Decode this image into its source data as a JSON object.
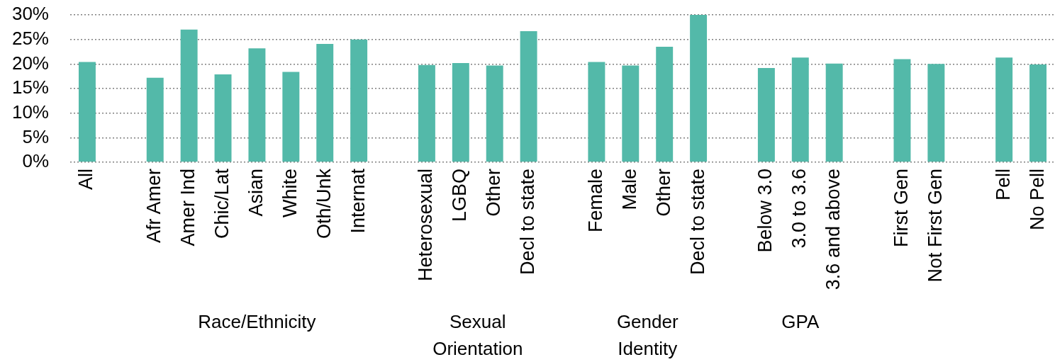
{
  "chart_data": {
    "type": "bar",
    "categories": [
      "All",
      null,
      "Afr Amer",
      "Amer Ind",
      "Chic/Lat",
      "Asian",
      "White",
      "Oth/Unk",
      "Internat",
      null,
      "Heterosexual",
      "LGBQ",
      "Other",
      "Decl to state",
      null,
      "Female",
      "Male",
      "Other",
      "Decl to state",
      null,
      "Below 3.0",
      "3.0 to 3.6",
      "3.6 and above",
      null,
      "First Gen",
      "Not First Gen",
      null,
      "Pell",
      "No Pell"
    ],
    "values": [
      20.4,
      null,
      17.2,
      27.0,
      17.9,
      23.2,
      18.4,
      24.1,
      25.0,
      null,
      19.8,
      20.2,
      19.7,
      26.7,
      null,
      20.4,
      19.7,
      23.5,
      30.0,
      null,
      19.2,
      21.3,
      20.1,
      null,
      21.0,
      20.0,
      null,
      21.3,
      19.9
    ],
    "color": "#53b9a9",
    "ylim": [
      0,
      30
    ],
    "yticks": [
      {
        "value": 0,
        "label": "0%"
      },
      {
        "value": 5,
        "label": "5%"
      },
      {
        "value": 10,
        "label": "10%"
      },
      {
        "value": 15,
        "label": "15%"
      },
      {
        "value": 20,
        "label": "20%"
      },
      {
        "value": 25,
        "label": "25%"
      },
      {
        "value": 30,
        "label": "30%"
      }
    ],
    "grid": "y",
    "annotations": [
      "Race/Ethnicity",
      "Sexual Orientation",
      "Gender Identity",
      "GPA"
    ]
  }
}
